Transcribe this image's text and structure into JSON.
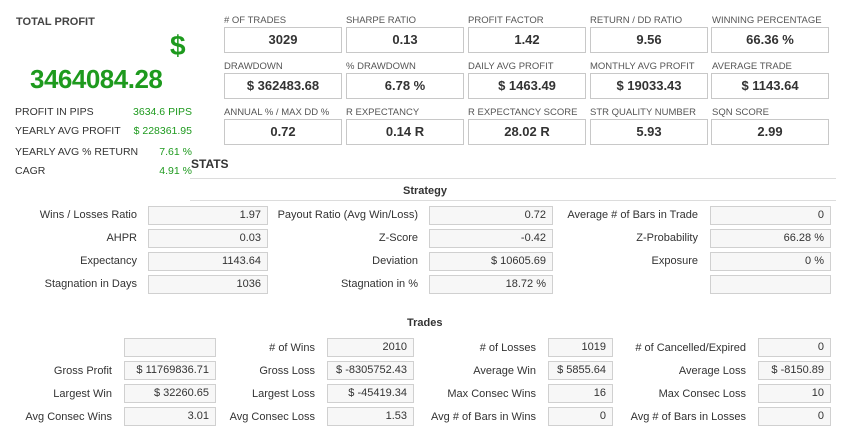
{
  "total_profit": {
    "title": "TOTAL PROFIT",
    "currency_symbol": "$",
    "value": "3464084.28"
  },
  "summary": [
    {
      "label": "PROFIT IN PIPS",
      "value": "3634.6 PIPS"
    },
    {
      "label": "YEARLY AVG PROFIT",
      "value": "$ 228361.95"
    },
    {
      "label": "YEARLY AVG % RETURN",
      "value": "7.61 %"
    },
    {
      "label": "CAGR",
      "value": "4.91 %"
    }
  ],
  "metrics": [
    {
      "label": "# OF TRADES",
      "value": "3029"
    },
    {
      "label": "SHARPE RATIO",
      "value": "0.13"
    },
    {
      "label": "PROFIT FACTOR",
      "value": "1.42"
    },
    {
      "label": "RETURN / DD RATIO",
      "value": "9.56"
    },
    {
      "label": "WINNING PERCENTAGE",
      "value": "66.36 %"
    },
    {
      "label": "DRAWDOWN",
      "value": "$ 362483.68"
    },
    {
      "label": "% DRAWDOWN",
      "value": "6.78 %"
    },
    {
      "label": "DAILY AVG PROFIT",
      "value": "$ 1463.49"
    },
    {
      "label": "MONTHLY AVG PROFIT",
      "value": "$ 19033.43"
    },
    {
      "label": "AVERAGE TRADE",
      "value": "$ 1143.64"
    },
    {
      "label": "ANNUAL % / MAX DD %",
      "value": "0.72"
    },
    {
      "label": "R EXPECTANCY",
      "value": "0.14 R"
    },
    {
      "label": "R EXPECTANCY SCORE",
      "value": "28.02 R"
    },
    {
      "label": "STR QUALITY NUMBER",
      "value": "5.93"
    },
    {
      "label": "SQN SCORE",
      "value": "2.99"
    }
  ],
  "stats_title": "STATS",
  "strategy": {
    "title": "Strategy",
    "rows": [
      [
        {
          "label": "Wins / Losses Ratio",
          "value": "1.97"
        },
        {
          "label": "Payout Ratio (Avg Win/Loss)",
          "value": "0.72"
        },
        {
          "label": "Average # of Bars in Trade",
          "value": "0"
        }
      ],
      [
        {
          "label": "AHPR",
          "value": "0.03"
        },
        {
          "label": "Z-Score",
          "value": "-0.42"
        },
        {
          "label": "Z-Probability",
          "value": "66.28 %"
        }
      ],
      [
        {
          "label": "Expectancy",
          "value": "1143.64"
        },
        {
          "label": "Deviation",
          "value": "$ 10605.69"
        },
        {
          "label": "Exposure",
          "value": "0 %"
        }
      ],
      [
        {
          "label": "Stagnation in Days",
          "value": "1036"
        },
        {
          "label": "Stagnation in %",
          "value": "18.72 %"
        },
        {
          "label": "",
          "value": ""
        }
      ]
    ]
  },
  "trades": {
    "title": "Trades",
    "rows": [
      [
        {
          "label": "",
          "value": ""
        },
        {
          "label": "# of Wins",
          "value": "2010"
        },
        {
          "label": "# of Losses",
          "value": "1019"
        },
        {
          "label": "# of Cancelled/Expired",
          "value": "0"
        }
      ],
      [
        {
          "label": "Gross Profit",
          "value": "$ 11769836.71"
        },
        {
          "label": "Gross Loss",
          "value": "$ -8305752.43"
        },
        {
          "label": "Average Win",
          "value": "$ 5855.64"
        },
        {
          "label": "Average Loss",
          "value": "$ -8150.89"
        }
      ],
      [
        {
          "label": "Largest Win",
          "value": "$ 32260.65"
        },
        {
          "label": "Largest Loss",
          "value": "$ -45419.34"
        },
        {
          "label": "Max Consec Wins",
          "value": "16"
        },
        {
          "label": "Max Consec Loss",
          "value": "10"
        }
      ],
      [
        {
          "label": "Avg Consec Wins",
          "value": "3.01"
        },
        {
          "label": "Avg Consec Loss",
          "value": "1.53"
        },
        {
          "label": "Avg # of Bars in Wins",
          "value": "0"
        },
        {
          "label": "Avg # of Bars in Losses",
          "value": "0"
        }
      ]
    ]
  }
}
